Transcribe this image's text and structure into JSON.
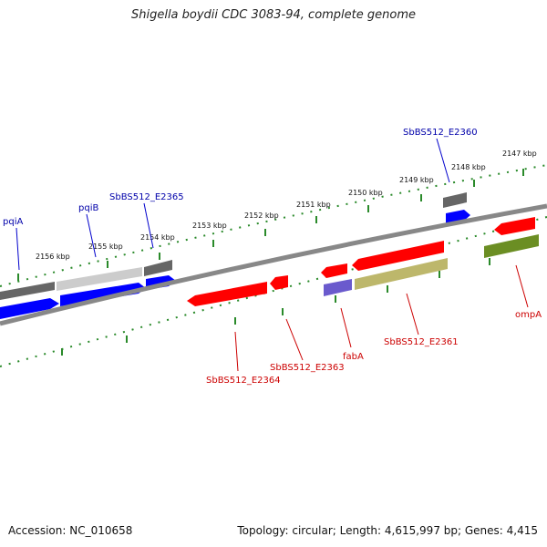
{
  "title": "Shigella boydii CDC 3083-94, complete genome",
  "footer": {
    "accession": "Accession: NC_010658",
    "summary": "Topology: circular; Length: 4,615,997 bp; Genes: 4,415"
  },
  "colors": {
    "forward_cds": "#0000ff",
    "reverse_cds": "#ff0000",
    "forward_gene": "#666666",
    "reverse_gene": "#d0d0d0",
    "ruler": "#2a8a2a",
    "backbone": "#888888",
    "forward_label": "#0000aa",
    "reverse_label": "#cc0000",
    "fabA_feature": "#6a5acd",
    "E2361_feature": "#bdb76b",
    "ompA_feature": "#6b8e23"
  },
  "ruler_labels": [
    "2156 kbp",
    "2155 kbp",
    "2154 kbp",
    "2153 kbp",
    "2152 kbp",
    "2151 kbp",
    "2150 kbp",
    "2149 kbp",
    "2148 kbp",
    "2147 kbp"
  ],
  "genes": {
    "forward": [
      "pqiA",
      "pqiB",
      "SbBS512_E2365",
      "SbBS512_E2360"
    ],
    "reverse": [
      "SbBS512_E2364",
      "SbBS512_E2363",
      "fabA",
      "SbBS512_E2361",
      "ompA"
    ]
  }
}
